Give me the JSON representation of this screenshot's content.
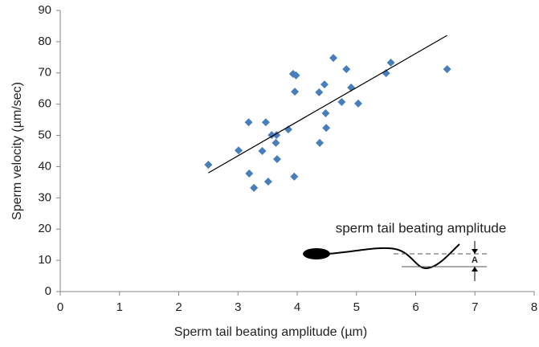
{
  "chart_data": {
    "type": "scatter",
    "x_label": "Sperm tail beating amplitude (µm)",
    "y_label": "Sperm velocity (µm/sec)",
    "x": [
      2.5,
      3.01,
      3.18,
      3.19,
      3.27,
      3.41,
      3.47,
      3.51,
      3.57,
      3.64,
      3.65,
      3.66,
      3.85,
      3.93,
      3.98,
      3.96,
      3.95,
      4.37,
      4.38,
      4.46,
      4.48,
      4.49,
      4.61,
      4.75,
      4.83,
      4.91,
      5.03,
      5.5,
      5.58,
      6.53
    ],
    "series": [
      {
        "color": "#4a7ebb",
        "values": [
          40.6,
          45.2,
          54.2,
          37.8,
          33.2,
          45.0,
          54.2,
          35.2,
          50.1,
          47.6,
          50.1,
          42.4,
          51.9,
          69.7,
          69.2,
          64.0,
          36.8,
          63.8,
          47.6,
          66.3,
          57.1,
          52.4,
          74.8,
          60.7,
          71.2,
          65.3,
          60.2,
          69.9,
          73.3,
          71.2
        ]
      }
    ],
    "trendline": {
      "color": "#000000",
      "x": [
        2.5,
        6.53
      ],
      "values": [
        38,
        82
      ]
    },
    "xlim": [
      0,
      8
    ],
    "xticks": [
      0,
      1,
      2,
      3,
      4,
      5,
      6,
      7,
      8
    ],
    "ylim": [
      0,
      90
    ],
    "yticks": [
      0,
      10,
      20,
      30,
      40,
      50,
      60,
      70,
      80,
      90
    ],
    "grid": false,
    "annotations": [
      "sperm tail beating amplitude",
      "A"
    ]
  }
}
